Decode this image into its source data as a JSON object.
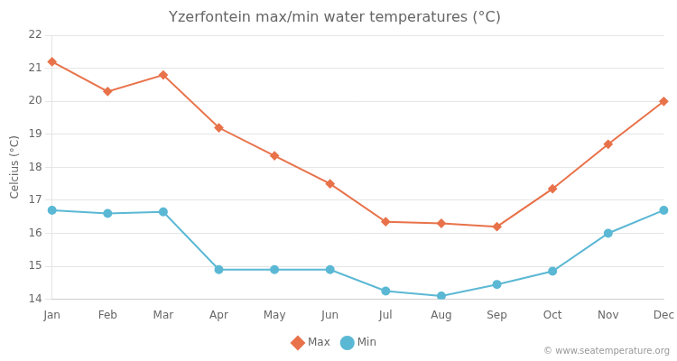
{
  "chart_data": {
    "type": "line",
    "title": "Yzerfontein max/min water temperatures (°C)",
    "y_label": "Celcius (°C)",
    "categories": [
      "Jan",
      "Feb",
      "Mar",
      "Apr",
      "May",
      "Jun",
      "Jul",
      "Aug",
      "Sep",
      "Oct",
      "Nov",
      "Dec"
    ],
    "series": [
      {
        "name": "Max",
        "color": "#e8724a",
        "marker": "diamond",
        "values": [
          21.2,
          20.3,
          20.8,
          19.2,
          18.35,
          17.5,
          16.35,
          16.3,
          16.2,
          17.35,
          18.7,
          20.0
        ]
      },
      {
        "name": "Min",
        "color": "#5bb8d4",
        "marker": "circle",
        "values": [
          16.7,
          16.6,
          16.65,
          14.9,
          14.9,
          14.9,
          14.25,
          14.1,
          14.45,
          14.85,
          16.0,
          16.7
        ]
      }
    ],
    "ylim": [
      14.0,
      22.0
    ],
    "yticks": [
      14,
      15,
      16,
      17,
      18,
      19,
      20,
      21,
      22
    ],
    "grid": true,
    "legend": "bottom",
    "annotations": [
      "© www.seatemperature.org"
    ]
  }
}
